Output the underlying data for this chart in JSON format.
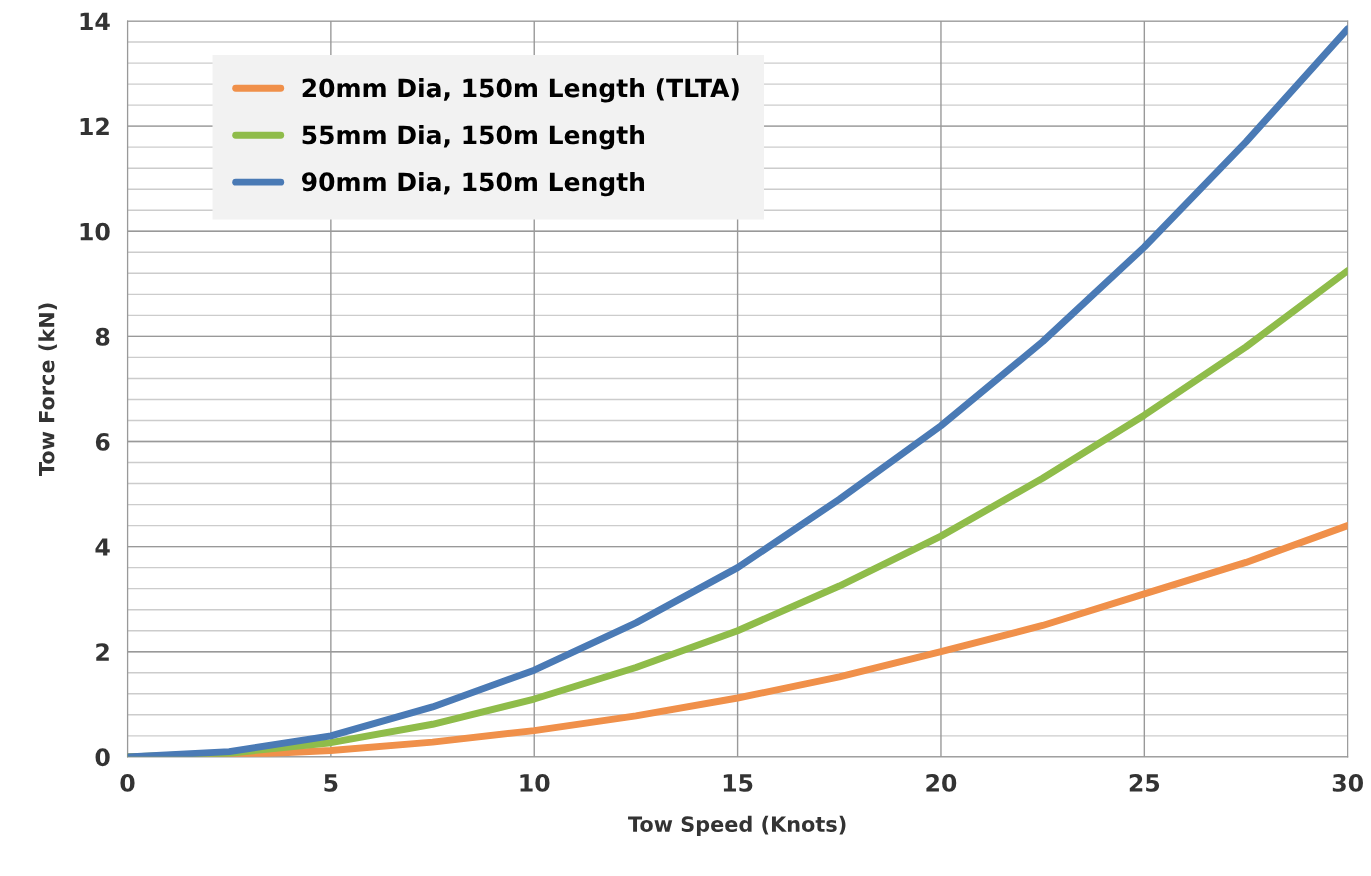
{
  "chart_data": {
    "type": "line",
    "xlabel": "Tow Speed (Knots)",
    "ylabel": "Tow Force (kN)",
    "x": [
      0,
      2.5,
      5,
      7.5,
      10,
      12.5,
      15,
      17.5,
      20,
      22.5,
      25,
      27.5,
      30
    ],
    "series": [
      {
        "name": "20mm Dia, 150m Length (TLTA)",
        "color": "#f0904a",
        "values": [
          0,
          0.03,
          0.12,
          0.28,
          0.5,
          0.78,
          1.12,
          1.52,
          2.0,
          2.5,
          3.1,
          3.7,
          4.4
        ]
      },
      {
        "name": "55mm Dia, 150m Length",
        "color": "#8fbc4a",
        "values": [
          0,
          0.07,
          0.27,
          0.62,
          1.1,
          1.7,
          2.4,
          3.25,
          4.2,
          5.3,
          6.5,
          7.8,
          9.25
        ]
      },
      {
        "name": "90mm Dia, 150m Length",
        "color": "#4a7ab5",
        "values": [
          0,
          0.1,
          0.4,
          0.95,
          1.65,
          2.55,
          3.6,
          4.9,
          6.3,
          7.9,
          9.7,
          11.7,
          13.85
        ]
      }
    ],
    "xlim": [
      0,
      30
    ],
    "xticks": [
      0,
      5,
      10,
      15,
      20,
      25,
      30
    ],
    "ylim": [
      0,
      14
    ],
    "yticks": [
      0,
      2,
      4,
      6,
      8,
      10,
      12,
      14
    ],
    "grid": true,
    "legend": "top left",
    "marker": "none",
    "line_style": "solid"
  }
}
